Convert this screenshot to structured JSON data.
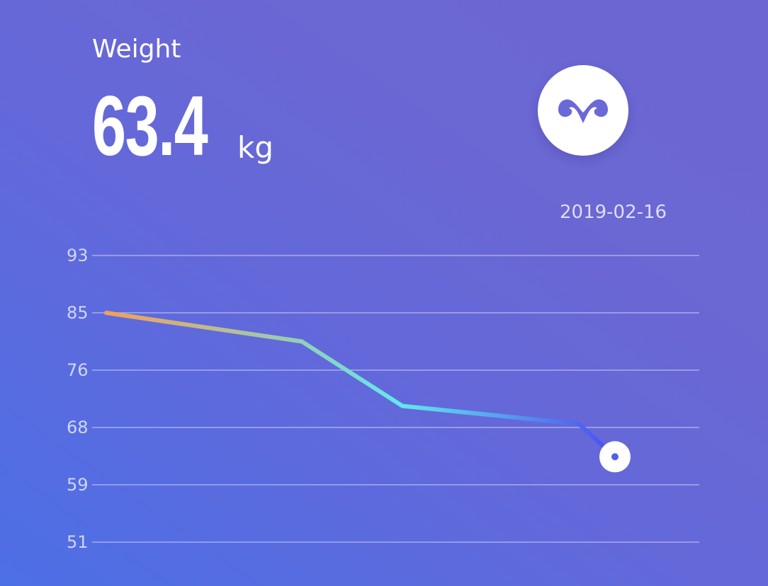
{
  "metric": {
    "label": "Weight",
    "value": "63.4",
    "unit": "kg"
  },
  "profile": {
    "icon": "ram-horns-icon"
  },
  "date": "2019-02-16",
  "chart_data": {
    "type": "line",
    "x": [
      0,
      1,
      2,
      3,
      4
    ],
    "values": [
      85,
      80.5,
      71,
      68.5,
      63.4
    ],
    "y_tick_labels": [
      "93",
      "85",
      "76",
      "68",
      "59",
      "51"
    ],
    "grid": true,
    "colors": {
      "line_start": "#f2a05a",
      "line_mid": "#62e8ec",
      "line_end": "#4b4cf2",
      "point_ring": "#ffffff",
      "point_center": "#4f62e7"
    }
  },
  "colors": {
    "background_start": "#4d6fe6",
    "background_end": "#6c66d2",
    "text": "#ffffff",
    "grid": "#ffffff"
  }
}
